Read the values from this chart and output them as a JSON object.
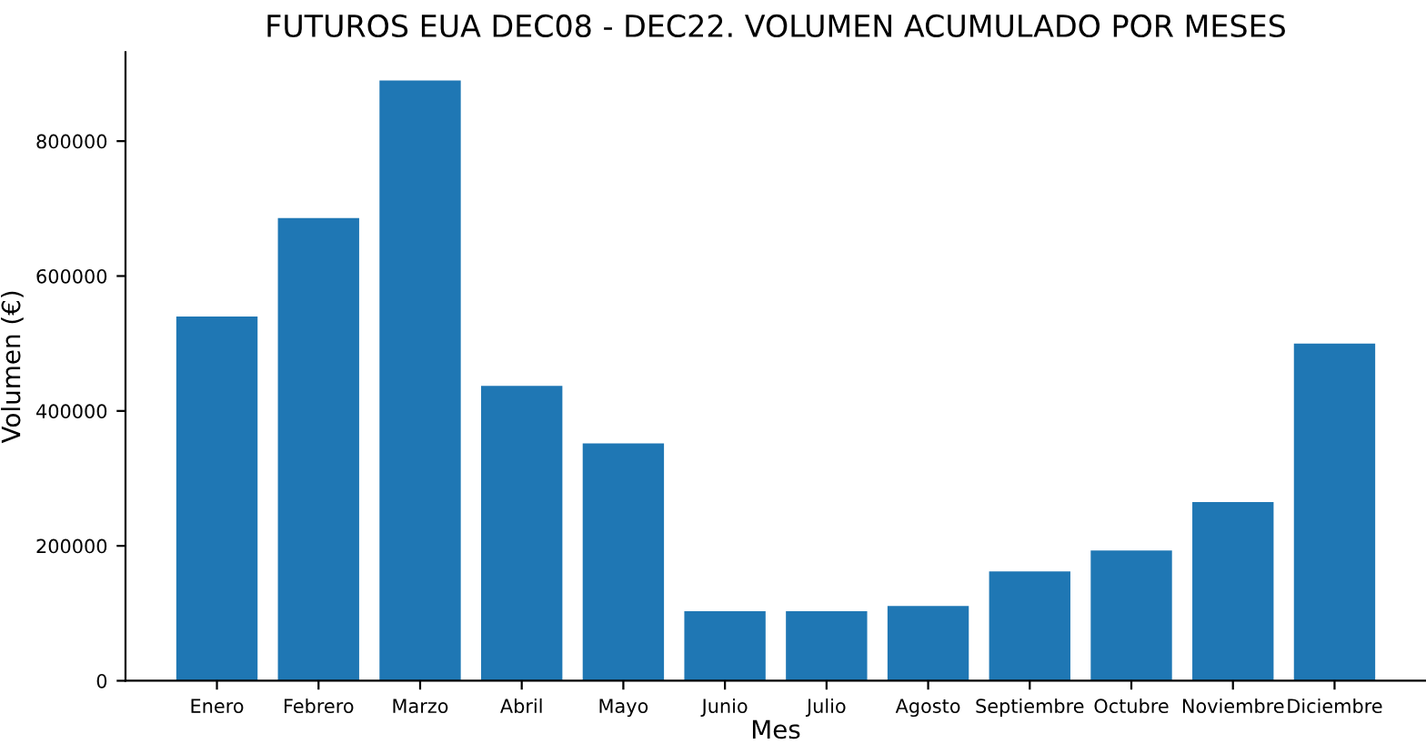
{
  "chart_data": {
    "type": "bar",
    "title": "FUTUROS EUA DEC08 - DEC22. VOLUMEN ACUMULADO POR MESES",
    "xlabel": "Mes",
    "ylabel": "Volumen (€)",
    "categories": [
      "Enero",
      "Febrero",
      "Marzo",
      "Abril",
      "Mayo",
      "Junio",
      "Julio",
      "Agosto",
      "Septiembre",
      "Octubre",
      "Noviembre",
      "Diciembre"
    ],
    "values": [
      540000,
      686000,
      890000,
      437000,
      352000,
      103000,
      103000,
      111000,
      162000,
      193000,
      265000,
      500000
    ],
    "color": "#1f77b4",
    "ylim": [
      0,
      932000
    ],
    "yticks": [
      0,
      200000,
      400000,
      600000,
      800000
    ],
    "grid": false,
    "legend": false
  }
}
